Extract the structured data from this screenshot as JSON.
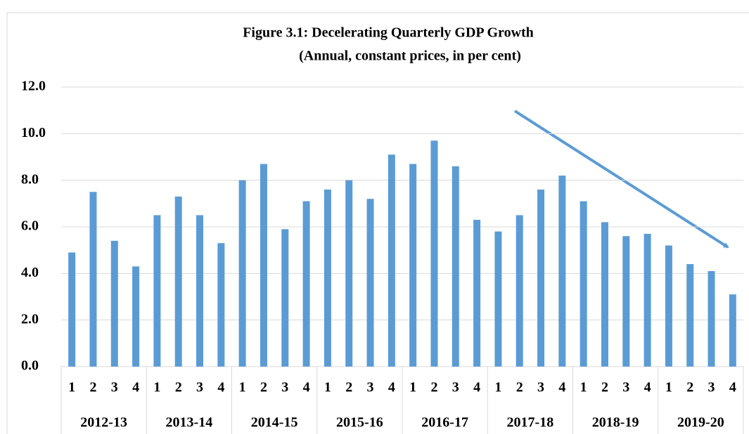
{
  "chart_data": {
    "type": "bar",
    "title": "Figure 3.1: Decelerating Quarterly GDP Growth",
    "subtitle": "(Annual, constant prices, in per cent)",
    "categories": [
      "1",
      "2",
      "3",
      "4",
      "1",
      "2",
      "3",
      "4",
      "1",
      "2",
      "3",
      "4",
      "1",
      "2",
      "3",
      "4",
      "1",
      "2",
      "3",
      "4",
      "1",
      "2",
      "3",
      "4",
      "1",
      "2",
      "3",
      "4",
      "1",
      "2",
      "3",
      "4"
    ],
    "groups": [
      "2012-13",
      "2013-14",
      "2014-15",
      "2015-16",
      "2016-17",
      "2017-18",
      "2018-19",
      "2019-20"
    ],
    "values": [
      4.9,
      7.5,
      5.4,
      4.3,
      6.5,
      7.3,
      6.5,
      5.3,
      8.0,
      8.7,
      5.9,
      7.1,
      7.6,
      8.0,
      7.2,
      9.1,
      8.7,
      9.7,
      8.6,
      6.3,
      5.8,
      6.5,
      7.6,
      8.2,
      7.1,
      6.2,
      5.6,
      5.7,
      5.2,
      4.4,
      4.1,
      3.1
    ],
    "color": "#5b9bd5",
    "ylim": [
      0,
      12
    ],
    "yticks": [
      {
        "value": 0,
        "label": "0.0"
      },
      {
        "value": 2,
        "label": "2.0"
      },
      {
        "value": 4,
        "label": "4.0"
      },
      {
        "value": 6,
        "label": "6.0"
      },
      {
        "value": 8,
        "label": "8.0"
      },
      {
        "value": 10,
        "label": "10.0"
      },
      {
        "value": 12,
        "label": "12.0"
      }
    ],
    "grid": true
  }
}
